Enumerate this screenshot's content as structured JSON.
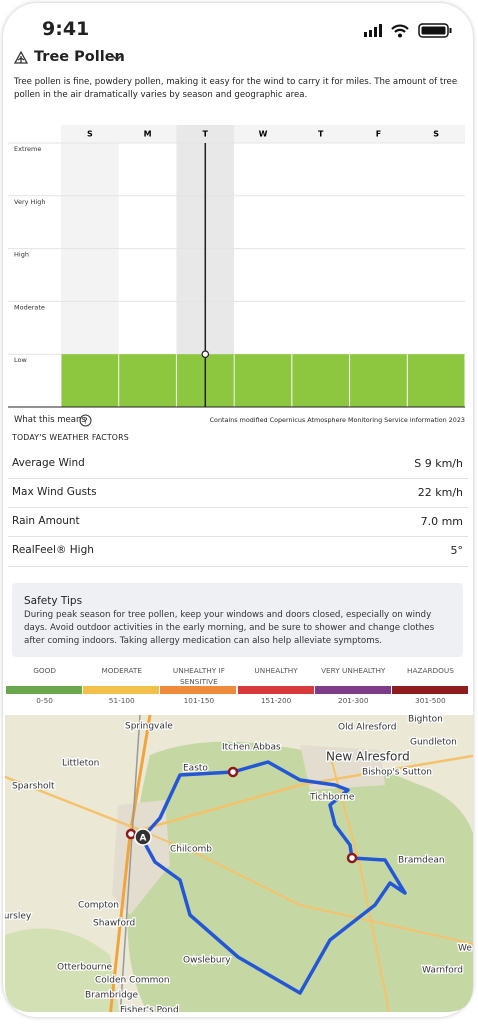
{
  "status_bar": {
    "time": "9:41"
  },
  "header": {
    "title": "Tree Pollen",
    "description": "Tree pollen is fine, powdery pollen, making it easy for the wind to carry it for miles. The amount of tree pollen in the air dramatically varies by season and geographic area."
  },
  "chart_data": {
    "type": "bar",
    "categories": [
      "S",
      "M",
      "T",
      "W",
      "T",
      "F",
      "S"
    ],
    "values": [
      1,
      1,
      1,
      1,
      1,
      1,
      1
    ],
    "color": "#8dc63f",
    "ylim": [
      0,
      5
    ],
    "yticks": [
      {
        "value": 1,
        "label": "Low"
      },
      {
        "value": 2,
        "label": "Moderate"
      },
      {
        "value": 3,
        "label": "High"
      },
      {
        "value": 4,
        "label": "Very High"
      },
      {
        "value": 5,
        "label": "Extreme"
      }
    ],
    "grid": true
  },
  "chart_footer": {
    "link": "What this means",
    "attribution": "Contains modified Copernicus Atmosphere Monitoring Service information 2023"
  },
  "weather_factors": {
    "heading": "TODAY'S WEATHER FACTORS",
    "rows": [
      [
        "Average Wind",
        "S 9 km/h"
      ],
      [
        "Max Wind Gusts",
        "22 km/h"
      ],
      [
        "Rain Amount",
        "7.0 mm"
      ],
      [
        "RealFeel® High",
        "5°"
      ]
    ]
  },
  "safety_tips": {
    "title": "Safety Tips",
    "body": "During peak season for tree pollen, keep your windows and doors closed, especially on windy days. Avoid outdoor activities in the early morning, and be sure to shower and change clothes after coming indoors. Taking allergy medication can also help alleviate symptoms."
  },
  "aqi_scale": [
    {
      "label": "GOOD",
      "range": "0-50",
      "color": "#6aa84f"
    },
    {
      "label": "MODERATE",
      "range": "51-100",
      "color": "#f1c04b"
    },
    {
      "label": "UNHEALTHY IF SENSITIVE",
      "range": "101-150",
      "color": "#ee8a3c"
    },
    {
      "label": "UNHEALTHY",
      "range": "151-200",
      "color": "#d63a3a"
    },
    {
      "label": "VERY UNHEALTHY",
      "range": "201-300",
      "color": "#7e3b8a"
    },
    {
      "label": "HAZARDOUS",
      "range": "301-500",
      "color": "#8e1c1c"
    }
  ],
  "map": {
    "marker": "A",
    "labels": [
      "Springvale",
      "Old Alresford",
      "Bighton",
      "Littleton",
      "Itchen Abbas",
      "Gundleton",
      "New Alresford",
      "Bishop's Sutton",
      "Sparsholt",
      "Easto",
      "Tichborne",
      "Chilcomb",
      "Bramdean",
      "Compton",
      "Shawford",
      "Hursley",
      "Otterbourne",
      "Owslebury",
      "Colden Common",
      "Brambridge",
      "Fisher's Pond",
      "Warnford",
      "We"
    ]
  }
}
